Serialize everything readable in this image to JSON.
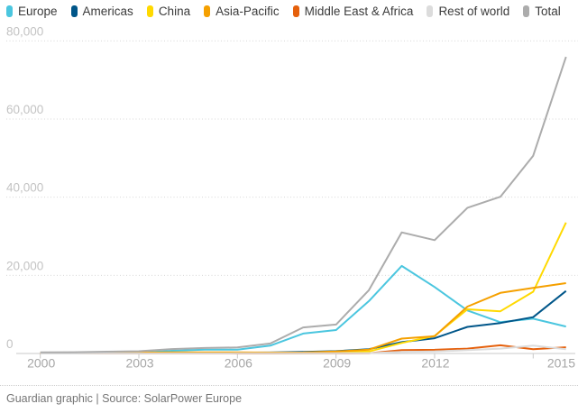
{
  "footer": {
    "credit": "Guardian graphic | Source: SolarPower Europe"
  },
  "chart_data": {
    "type": "line",
    "x": [
      2000,
      2001,
      2002,
      2003,
      2004,
      2005,
      2006,
      2007,
      2008,
      2009,
      2010,
      2011,
      2012,
      2013,
      2014,
      2015,
      2016
    ],
    "series": [
      {
        "name": "Europe",
        "color": "#4bc6df",
        "values": [
          50,
          80,
          120,
          190,
          700,
          1000,
          1000,
          2000,
          5100,
          6000,
          13400,
          22400,
          17000,
          11000,
          8000,
          8900,
          6900
        ]
      },
      {
        "name": "Americas",
        "color": "#005689",
        "values": [
          20,
          30,
          50,
          90,
          120,
          150,
          200,
          250,
          400,
          600,
          1100,
          2900,
          3900,
          6800,
          7800,
          9300,
          16000
        ]
      },
      {
        "name": "China",
        "color": "#ffd900",
        "values": [
          0,
          5,
          10,
          10,
          10,
          10,
          10,
          20,
          40,
          200,
          500,
          2700,
          4500,
          11300,
          10800,
          15800,
          33500
        ]
      },
      {
        "name": "Asia-Pacific",
        "color": "#f5a000",
        "values": [
          110,
          130,
          180,
          220,
          270,
          290,
          290,
          230,
          260,
          500,
          1000,
          3800,
          4400,
          12000,
          15500,
          16800,
          18000
        ]
      },
      {
        "name": "Middle East & Africa",
        "color": "#e5600c",
        "values": [
          0,
          0,
          5,
          5,
          5,
          10,
          10,
          10,
          20,
          30,
          80,
          850,
          950,
          1250,
          2100,
          1100,
          1600
        ]
      },
      {
        "name": "Rest of world",
        "color": "#dcdcdc",
        "values": [
          10,
          10,
          15,
          20,
          25,
          30,
          40,
          50,
          60,
          70,
          100,
          400,
          500,
          850,
          1250,
          2000,
          1100
        ]
      },
      {
        "name": "Total",
        "color": "#acacac",
        "values": [
          280,
          330,
          460,
          580,
          1120,
          1410,
          1540,
          2550,
          6660,
          7400,
          16200,
          31000,
          29000,
          37300,
          40100,
          50600,
          75900
        ]
      }
    ],
    "ylim": [
      0,
      80000
    ],
    "yticks": [
      0,
      20000,
      40000,
      60000,
      80000
    ],
    "ytick_labels": [
      "0",
      "20,000",
      "40,000",
      "60,000",
      "80,000"
    ],
    "xticks": [
      2000,
      2003,
      2006,
      2009,
      2012,
      2015
    ],
    "xtick_labels": [
      "2000",
      "2003",
      "2006",
      "2009",
      "2012",
      "2015"
    ],
    "grid": "horizontal-dotted",
    "legend_position": "top"
  }
}
